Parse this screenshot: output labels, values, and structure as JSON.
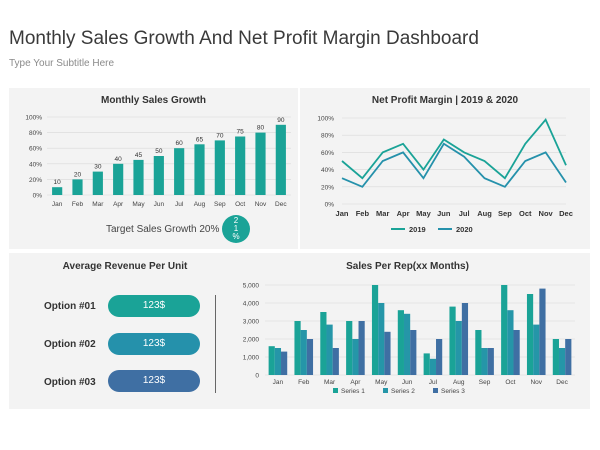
{
  "header": {
    "title": "Monthly Sales Growth And Net Profit Margin Dashboard",
    "subtitle": "Type Your Subtitle Here"
  },
  "colors": {
    "teal": "#1aa397",
    "blue": "#3f6fa3",
    "mid": "#2596a8",
    "panel": "#f3f3f3"
  },
  "target": {
    "label": "Target Sales Growth 20%",
    "badge": "21%",
    "badge_lines": [
      "2",
      "1",
      "%"
    ]
  },
  "revenue": {
    "title": "Average Revenue Per Unit",
    "options": [
      {
        "label": "Option #01",
        "value": "123$",
        "color": "#1aa397"
      },
      {
        "label": "Option #02",
        "value": "123$",
        "color": "#2591ab"
      },
      {
        "label": "Option #03",
        "value": "123$",
        "color": "#3f6fa3"
      }
    ]
  },
  "chart_data": [
    {
      "type": "bar",
      "title": "Monthly Sales Growth",
      "categories": [
        "Jan",
        "Feb",
        "Mar",
        "Apr",
        "May",
        "Jun",
        "Jul",
        "Aug",
        "Sep",
        "Oct",
        "Nov",
        "Dec"
      ],
      "values": [
        10,
        20,
        30,
        40,
        45,
        50,
        60,
        65,
        70,
        75,
        80,
        90
      ],
      "yticks": [
        "0%",
        "20%",
        "40%",
        "60%",
        "80%",
        "100%"
      ],
      "ylim": [
        0,
        100
      ]
    },
    {
      "type": "line",
      "title": "Net Profit Margin | 2019 & 2020",
      "categories": [
        "Jan",
        "Feb",
        "Mar",
        "Apr",
        "May",
        "Jun",
        "Jul",
        "Aug",
        "Sep",
        "Oct",
        "Nov",
        "Dec"
      ],
      "series": [
        {
          "name": "2019",
          "values": [
            50,
            30,
            60,
            70,
            40,
            75,
            60,
            50,
            30,
            70,
            98,
            45
          ]
        },
        {
          "name": "2020",
          "values": [
            30,
            20,
            50,
            60,
            30,
            70,
            55,
            30,
            20,
            50,
            60,
            25
          ]
        }
      ],
      "yticks": [
        "0%",
        "20%",
        "40%",
        "60%",
        "80%",
        "100%"
      ],
      "ylim": [
        0,
        100
      ]
    },
    {
      "type": "bar",
      "title": "Sales Per Rep(xx Months)",
      "categories": [
        "Jan",
        "Feb",
        "Mar",
        "Apr",
        "May",
        "Jun",
        "Jul",
        "Aug",
        "Sep",
        "Oct",
        "Nov",
        "Dec"
      ],
      "series": [
        {
          "name": "Series 1",
          "values": [
            1600,
            3000,
            3500,
            3000,
            5000,
            3600,
            1200,
            3800,
            2500,
            5000,
            4500,
            2000
          ]
        },
        {
          "name": "Series 2",
          "values": [
            1500,
            2500,
            2800,
            2000,
            4000,
            3400,
            900,
            3000,
            1500,
            3600,
            2800,
            1500
          ]
        },
        {
          "name": "Series 3",
          "values": [
            1300,
            2000,
            1500,
            3000,
            2400,
            2500,
            2000,
            4000,
            1500,
            2500,
            4800,
            2000
          ]
        }
      ],
      "yticks": [
        "0",
        "1,000",
        "2,000",
        "3,000",
        "4,000",
        "5,000"
      ],
      "ylim": [
        0,
        5000
      ]
    }
  ]
}
